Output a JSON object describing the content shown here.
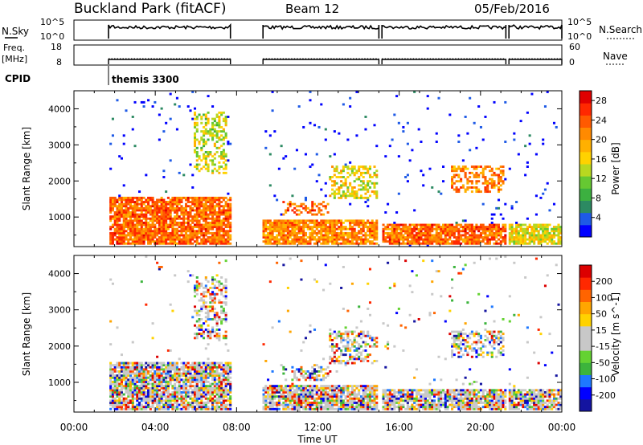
{
  "header": {
    "station": "Buckland Park (fitACF)",
    "beam": "Beam 12",
    "date": "05/Feb/2016"
  },
  "summary_panels": {
    "nsky_label": "N.Sky",
    "nsky_ticks": [
      "10^5",
      "10^0"
    ],
    "nsky_right_ticks": [
      "10^5",
      "10^0"
    ],
    "nsearch_label": "N.Search",
    "freq_label_1": "Freq.",
    "freq_label_2": "[MHz]",
    "freq_ticks": [
      "18",
      "8"
    ],
    "nave_ticks": [
      "60",
      "0"
    ],
    "nave_label": "Nave",
    "cpid_label": "CPID",
    "cpid_value": "themis 3300"
  },
  "time_axis": {
    "label": "Time UT",
    "ticks": [
      "00:00",
      "04:00",
      "08:00",
      "12:00",
      "16:00",
      "20:00",
      "00:00"
    ],
    "range_hours": [
      0,
      24
    ]
  },
  "chart_data": [
    {
      "type": "heatmap",
      "panel": "power",
      "ylabel": "Slant Range [km]",
      "yticks": [
        1000,
        2000,
        3000,
        4000
      ],
      "ylim": [
        180,
        4500
      ],
      "xlim_hours": [
        0,
        24
      ],
      "colorbar": {
        "label": "Power [dB]",
        "ticks": [
          "4",
          "8",
          "12",
          "16",
          "20",
          "24",
          "28"
        ],
        "range": [
          0,
          30
        ],
        "colors": [
          "#0000ff",
          "#1e5ae6",
          "#2c8a62",
          "#3cb040",
          "#66c832",
          "#b8d820",
          "#ffd200",
          "#ffb000",
          "#ff8a00",
          "#ff5a00",
          "#ff2800",
          "#e00000"
        ]
      },
      "data_gaps_hours": [
        [
          0,
          1.7
        ],
        [
          7.7,
          9.3
        ],
        [
          15.0,
          15.15
        ],
        [
          21.25,
          21.4
        ]
      ],
      "dense_regions": [
        {
          "t": [
            1.7,
            7.7
          ],
          "range_km": [
            250,
            1550
          ],
          "power_db": 24
        },
        {
          "t": [
            9.3,
            15.0
          ],
          "range_km": [
            250,
            900
          ],
          "power_db": 22
        },
        {
          "t": [
            15.15,
            21.25
          ],
          "range_km": [
            250,
            800
          ],
          "power_db": 24
        },
        {
          "t": [
            21.4,
            24
          ],
          "range_km": [
            250,
            800
          ],
          "power_db": 16
        }
      ],
      "features": [
        {
          "t": [
            10.3,
            12.5
          ],
          "range_km": [
            1050,
            1450
          ],
          "power_db": 24
        },
        {
          "t": [
            18.6,
            21.2
          ],
          "range_km": [
            1700,
            2450
          ],
          "power_db": 22
        },
        {
          "t": [
            5.9,
            7.5
          ],
          "range_km": [
            2200,
            3900
          ],
          "power_db": 14
        },
        {
          "t": [
            12.5,
            15.0
          ],
          "range_km": [
            1500,
            2400
          ],
          "power_db": 16
        }
      ]
    },
    {
      "type": "heatmap",
      "panel": "velocity",
      "ylabel": "Slant Range [km]",
      "yticks": [
        1000,
        2000,
        3000,
        4000
      ],
      "ylim": [
        180,
        4500
      ],
      "xlim_hours": [
        0,
        24
      ],
      "colorbar": {
        "label": "Velocity [m s^-1]",
        "ticks": [
          "200",
          "100",
          "50",
          "15",
          "-15",
          "-50",
          "-100",
          "-200"
        ],
        "range": [
          -250,
          250
        ],
        "colors": [
          "#1414a0",
          "#0000ff",
          "#1e78ff",
          "#3cb43c",
          "#64d232",
          "#c8c8c8",
          "#c8c8c8",
          "#ffd200",
          "#ffa500",
          "#ff6400",
          "#ff2800",
          "#dc0000"
        ]
      },
      "data_gaps_hours": [
        [
          0,
          1.7
        ],
        [
          7.7,
          9.3
        ],
        [
          15.0,
          15.15
        ],
        [
          21.25,
          21.4
        ]
      ],
      "ground_scatter_color": "#c8c8c8"
    }
  ]
}
